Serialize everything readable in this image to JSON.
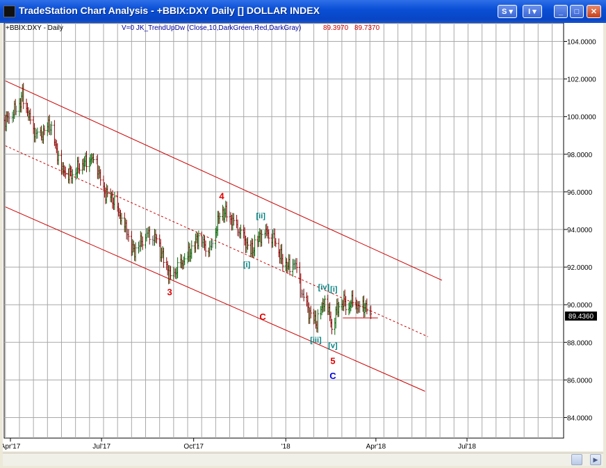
{
  "window": {
    "title": "TradeStation Chart Analysis - +BBIX:DXY Daily [] DOLLAR INDEX",
    "buttons": {
      "s_menu": "S",
      "i_menu": "I",
      "minimize": "_",
      "maximize": "□",
      "close": "✕"
    }
  },
  "header": {
    "symbol": "+BBIX:DXY - Daily",
    "indicator": "V=0  JK_TrendUpDw (Close,10,DarkGreen,Red,DarkGray)",
    "val1": "89.3970",
    "val2": "89.7370"
  },
  "colors": {
    "up": "#006400",
    "down": "#8b0000",
    "neutral": "#808080",
    "channel": "#cc0000",
    "wave_red": "#dd0000",
    "wave_teal": "#008080",
    "wave_blue": "#0000dd"
  },
  "chart_data": {
    "type": "ohlc",
    "y_ticks": [
      "84.0000",
      "86.0000",
      "88.0000",
      "90.0000",
      "92.0000",
      "94.0000",
      "96.0000",
      "98.0000",
      "100.0000",
      "102.0000",
      "104.0000"
    ],
    "ylim": [
      82.6,
      105.6
    ],
    "x_ticks": [
      {
        "label": "Apr'17",
        "date": "2017-04-01"
      },
      {
        "label": "Jul'17",
        "date": "2017-07-01"
      },
      {
        "label": "Oct'17",
        "date": "2017-10-01"
      },
      {
        "label": "'18",
        "date": "2018-01-01"
      },
      {
        "label": "Apr'18",
        "date": "2018-04-01"
      },
      {
        "label": "Jul'18",
        "date": "2018-07-01"
      }
    ],
    "last_price": "89.4360",
    "close_path": [
      [
        "2017-03-27",
        99.8
      ],
      [
        "2017-04-10",
        100.6
      ],
      [
        "2017-04-13",
        101.2
      ],
      [
        "2017-04-24",
        99.2
      ],
      [
        "2017-05-01",
        98.9
      ],
      [
        "2017-05-10",
        99.6
      ],
      [
        "2017-05-22",
        97.2
      ],
      [
        "2017-06-02",
        96.9
      ],
      [
        "2017-06-09",
        97.4
      ],
      [
        "2017-06-20",
        97.8
      ],
      [
        "2017-06-26",
        97.5
      ],
      [
        "2017-07-03",
        96.0
      ],
      [
        "2017-07-12",
        95.6
      ],
      [
        "2017-07-27",
        93.8
      ],
      [
        "2017-08-02",
        92.8
      ],
      [
        "2017-08-15",
        93.8
      ],
      [
        "2017-08-25",
        93.5
      ],
      [
        "2017-09-01",
        92.4
      ],
      [
        "2017-09-08",
        91.4
      ],
      [
        "2017-09-15",
        91.9
      ],
      [
        "2017-09-25",
        92.6
      ],
      [
        "2017-10-06",
        93.6
      ],
      [
        "2017-10-12",
        93.2
      ],
      [
        "2017-10-18",
        93.0
      ],
      [
        "2017-10-27",
        94.8
      ],
      [
        "2017-11-03",
        94.9
      ],
      [
        "2017-11-10",
        94.3
      ],
      [
        "2017-11-20",
        93.5
      ],
      [
        "2017-11-27",
        92.8
      ],
      [
        "2017-12-06",
        93.6
      ],
      [
        "2017-12-12",
        93.9
      ],
      [
        "2017-12-20",
        93.6
      ],
      [
        "2017-12-29",
        92.3
      ],
      [
        "2018-01-05",
        92.0
      ],
      [
        "2018-01-10",
        92.3
      ],
      [
        "2018-01-17",
        90.6
      ],
      [
        "2018-01-25",
        89.5
      ],
      [
        "2018-02-01",
        89.0
      ],
      [
        "2018-02-09",
        90.3
      ],
      [
        "2018-02-14",
        89.4
      ],
      [
        "2018-02-16",
        88.8
      ],
      [
        "2018-02-21",
        89.8
      ],
      [
        "2018-02-28",
        90.2
      ],
      [
        "2018-03-05",
        89.9
      ],
      [
        "2018-03-09",
        90.3
      ],
      [
        "2018-03-15",
        89.8
      ],
      [
        "2018-03-21",
        89.9
      ],
      [
        "2018-03-27",
        89.4
      ]
    ],
    "channel_upper": [
      [
        "2017-03-27",
        101.9
      ],
      [
        "2018-06-06",
        91.3
      ]
    ],
    "channel_mid": [
      [
        "2017-03-27",
        98.45
      ],
      [
        "2018-05-23",
        88.3
      ]
    ],
    "channel_lower": [
      [
        "2017-03-27",
        95.2
      ],
      [
        "2018-05-20",
        85.4
      ]
    ],
    "support_line": {
      "y": 89.3,
      "from": "2018-02-27",
      "to": "2018-04-03"
    },
    "annotations": [
      {
        "text": "4",
        "date": "2017-10-29",
        "y": 95.6,
        "color": "wave_red"
      },
      {
        "text": "3",
        "date": "2017-09-07",
        "y": 90.5,
        "color": "wave_red"
      },
      {
        "text": "[ii]",
        "date": "2017-12-07",
        "y": 94.6,
        "color": "wave_teal"
      },
      {
        "text": "[i]",
        "date": "2017-11-23",
        "y": 92.0,
        "color": "wave_teal"
      },
      {
        "text": "C",
        "date": "2017-12-09",
        "y": 89.2,
        "color": "wave_red"
      },
      {
        "text": "[iv]",
        "date": "2018-02-08",
        "y": 90.8,
        "color": "wave_teal"
      },
      {
        "text": "[i]",
        "date": "2018-02-18",
        "y": 90.7,
        "color": "wave_teal"
      },
      {
        "text": "[iii]",
        "date": "2018-01-31",
        "y": 88.0,
        "color": "wave_teal"
      },
      {
        "text": "[v]",
        "date": "2018-02-17",
        "y": 87.7,
        "color": "wave_teal"
      },
      {
        "text": "5",
        "date": "2018-02-17",
        "y": 86.85,
        "color": "wave_red"
      },
      {
        "text": "C",
        "date": "2018-02-17",
        "y": 86.05,
        "color": "wave_blue"
      }
    ]
  }
}
